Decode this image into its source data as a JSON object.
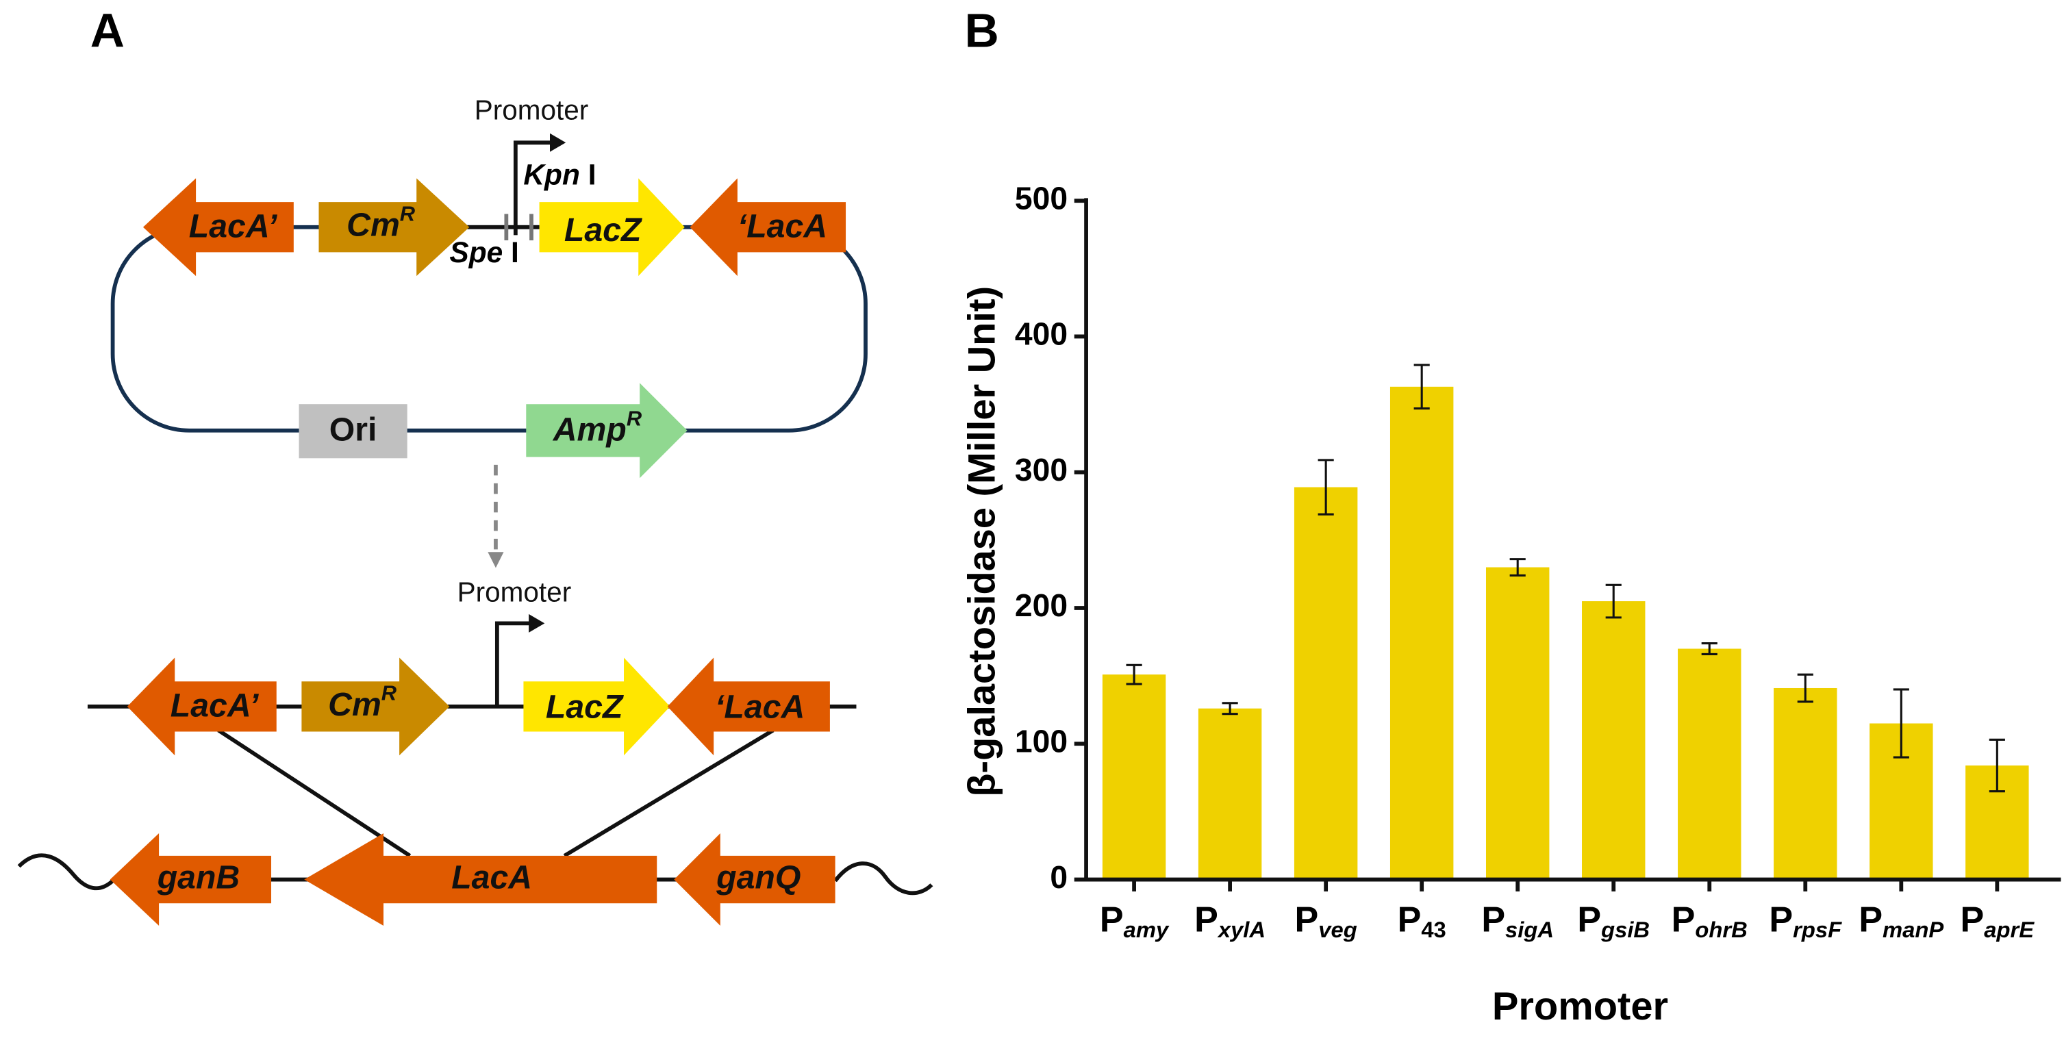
{
  "diagram": {
    "panel_label": "A",
    "plasmid": {
      "promoter": "Promoter",
      "kpn": {
        "name": "Kpn",
        "suffix": "I"
      },
      "spe": {
        "name": "Spe",
        "suffix": "I"
      },
      "genes": [
        {
          "label": "LacA’"
        },
        {
          "label": "Cm",
          "sup": "R"
        },
        {
          "label": "LacZ"
        },
        {
          "label": "‘LacA"
        },
        {
          "label": "Ori"
        },
        {
          "label": "Amp",
          "sup": "R"
        }
      ]
    },
    "integrated": {
      "promoter": "Promoter",
      "genes": [
        {
          "label": "LacA’"
        },
        {
          "label": "Cm",
          "sup": "R"
        },
        {
          "label": "LacZ"
        },
        {
          "label": "‘LacA"
        }
      ]
    },
    "chromosome": {
      "genes": [
        "ganB",
        "LacA",
        "ganQ"
      ]
    }
  },
  "chart_data": {
    "type": "bar",
    "panel_label": "B",
    "y_label": "β-galactosidase (Miller Unit)",
    "x_label": "Promoter",
    "categories": [
      {
        "base": "P",
        "sub": "amy"
      },
      {
        "base": "P",
        "sub": "xylA"
      },
      {
        "base": "P",
        "sub": "veg"
      },
      {
        "base": "P",
        "sub": "43"
      },
      {
        "base": "P",
        "sub": "sigA"
      },
      {
        "base": "P",
        "sub": "gsiB"
      },
      {
        "base": "P",
        "sub": "ohrB"
      },
      {
        "base": "P",
        "sub": "rpsF"
      },
      {
        "base": "P",
        "sub": "manP"
      },
      {
        "base": "P",
        "sub": "aprE"
      }
    ],
    "values": [
      151,
      126,
      289,
      363,
      230,
      205,
      170,
      141,
      115,
      84
    ],
    "errors": [
      7,
      4,
      20,
      16,
      6,
      12,
      4,
      10,
      25,
      19
    ],
    "color": "#efd100",
    "ylim": [
      0,
      500
    ],
    "yticks": [
      0,
      100,
      200,
      300,
      400,
      500
    ],
    "grid": false
  }
}
